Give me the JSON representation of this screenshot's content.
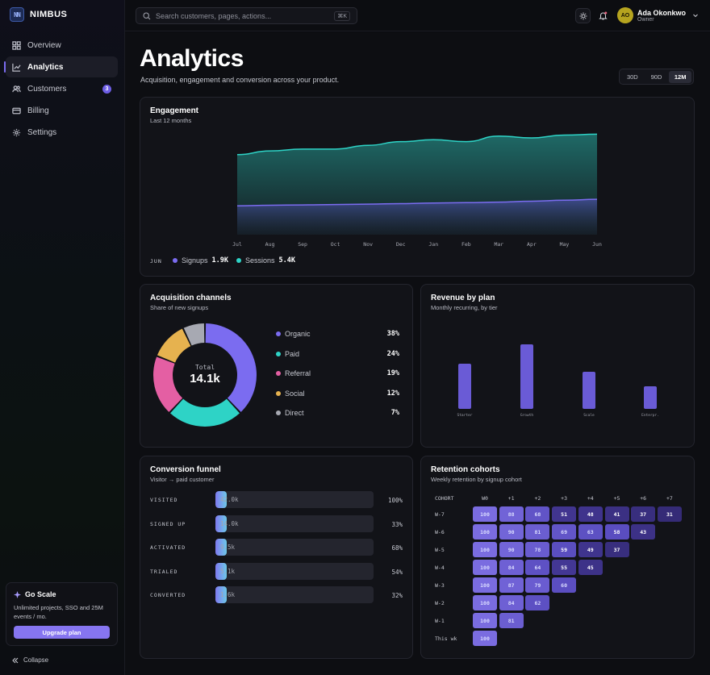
{
  "brand": {
    "logo": "NN",
    "name": "NIMBUS"
  },
  "sidebar": {
    "items": [
      {
        "label": "Overview",
        "icon": "grid-icon"
      },
      {
        "label": "Analytics",
        "icon": "chart-icon",
        "active": true
      },
      {
        "label": "Customers",
        "icon": "users-icon",
        "badge": "3"
      },
      {
        "label": "Billing",
        "icon": "card-icon"
      },
      {
        "label": "Settings",
        "icon": "gear-icon"
      }
    ],
    "promo": {
      "title": "Go Scale",
      "text": "Unlimited projects, SSO and 25M events / mo.",
      "button": "Upgrade plan"
    },
    "collapse": "Collapse"
  },
  "topbar": {
    "search_placeholder": "Search customers, pages, actions...",
    "shortcut": "⌘K",
    "user": {
      "initials": "AO",
      "name": "Ada Okonkwo",
      "role": "Owner"
    }
  },
  "page": {
    "title": "Analytics",
    "subtitle": "Acquisition, engagement and conversion across your product.",
    "ranges": [
      "30D",
      "90D",
      "12M"
    ],
    "selected_range": "12M"
  },
  "colors": {
    "accent": "#8675f0",
    "sessions": "#2ed3c6",
    "signups": "#7b6cf0"
  },
  "engagement": {
    "title": "Engagement",
    "subtitle": "Last 12 months",
    "footer_month": "JUN",
    "signups_label": "Signups",
    "signups_value": "1.9K",
    "sessions_label": "Sessions",
    "sessions_value": "5.4K"
  },
  "acquisition": {
    "title": "Acquisition channels",
    "subtitle": "Share of new signups",
    "total_label": "Total",
    "total_value": "14.1k",
    "channels": [
      {
        "name": "Organic",
        "pct": "38%",
        "color": "#7b6cf0"
      },
      {
        "name": "Paid",
        "pct": "24%",
        "color": "#2ed3c6"
      },
      {
        "name": "Referral",
        "pct": "19%",
        "color": "#e45fa3"
      },
      {
        "name": "Social",
        "pct": "12%",
        "color": "#e6b24f"
      },
      {
        "name": "Direct",
        "pct": "7%",
        "color": "#a7a9b2"
      }
    ]
  },
  "revenue": {
    "title": "Revenue by plan",
    "subtitle": "Monthly recurring, by tier"
  },
  "funnel": {
    "title": "Conversion funnel",
    "subtitle": "Visitor → paid customer",
    "stages": [
      {
        "label": "VISITED",
        "value": "42.0k",
        "pct": "100%",
        "fill": 0.072
      },
      {
        "label": "SIGNED UP",
        "value": "14.0k",
        "pct": "33%",
        "fill": 0.07
      },
      {
        "label": "ACTIVATED",
        "value": "9.5k",
        "pct": "68%",
        "fill": 0.07
      },
      {
        "label": "TRIALED",
        "value": "5.1k",
        "pct": "54%",
        "fill": 0.07
      },
      {
        "label": "CONVERTED",
        "value": "1.6k",
        "pct": "32%",
        "fill": 0.07
      }
    ]
  },
  "cohorts": {
    "title": "Retention cohorts",
    "subtitle": "Weekly retention by signup cohort",
    "corner": "COHORT",
    "columns": [
      "W0",
      "+1",
      "+2",
      "+3",
      "+4",
      "+5",
      "+6",
      "+7"
    ],
    "rows": [
      {
        "label": "W-7",
        "values": [
          "100",
          "88",
          "68",
          "51",
          "48",
          "41",
          "37",
          "31"
        ]
      },
      {
        "label": "W-6",
        "values": [
          "100",
          "90",
          "81",
          "69",
          "63",
          "58",
          "43"
        ]
      },
      {
        "label": "W-5",
        "values": [
          "100",
          "90",
          "78",
          "59",
          "49",
          "37"
        ]
      },
      {
        "label": "W-4",
        "values": [
          "100",
          "84",
          "64",
          "55",
          "45"
        ]
      },
      {
        "label": "W-3",
        "values": [
          "100",
          "87",
          "79",
          "60"
        ]
      },
      {
        "label": "W-2",
        "values": [
          "100",
          "84",
          "62"
        ]
      },
      {
        "label": "W-1",
        "values": [
          "100",
          "81"
        ]
      },
      {
        "label": "This wk",
        "values": [
          "100"
        ]
      }
    ]
  },
  "chart_data": [
    {
      "type": "area",
      "categories": [
        "Jul",
        "Aug",
        "Sep",
        "Oct",
        "Nov",
        "Dec",
        "Jan",
        "Feb",
        "Mar",
        "Apr",
        "May",
        "Jun"
      ],
      "series": [
        {
          "name": "Sessions",
          "values": [
            4.3,
            4.5,
            4.6,
            4.6,
            4.8,
            5.0,
            5.1,
            5.0,
            5.3,
            5.2,
            5.35,
            5.4
          ]
        },
        {
          "name": "Signups",
          "values": [
            1.55,
            1.58,
            1.6,
            1.62,
            1.64,
            1.67,
            1.7,
            1.72,
            1.75,
            1.8,
            1.85,
            1.9
          ]
        }
      ],
      "ylim": [
        0,
        6.5
      ]
    },
    {
      "type": "pie",
      "categories": [
        "Organic",
        "Paid",
        "Referral",
        "Social",
        "Direct"
      ],
      "values": [
        38,
        24,
        19,
        12,
        7
      ]
    },
    {
      "type": "bar",
      "categories": [
        "Starter",
        "Growth",
        "Scale",
        "Enterpr."
      ],
      "values": [
        28,
        40,
        23,
        14
      ],
      "ylim": [
        0,
        50
      ]
    }
  ]
}
